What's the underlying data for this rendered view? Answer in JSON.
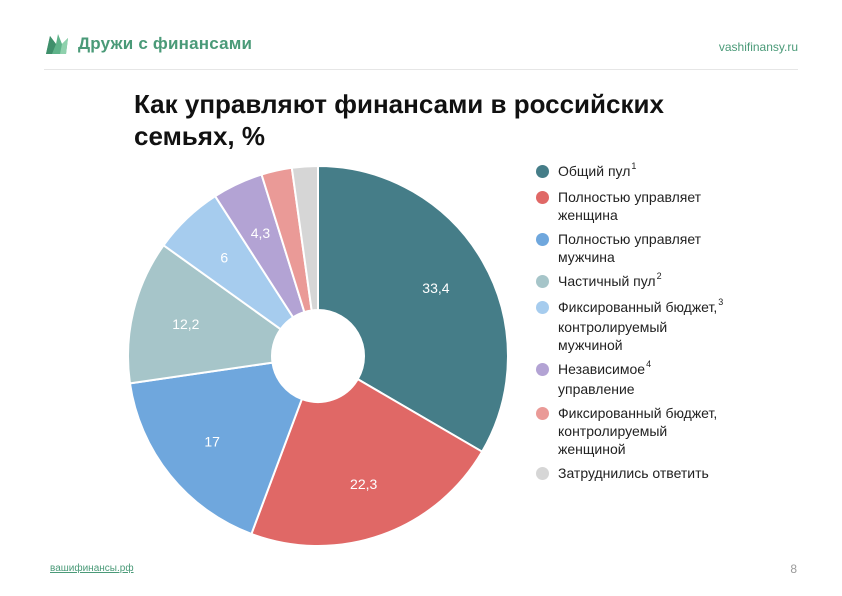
{
  "header": {
    "brand": "Дружи с финансами",
    "site": "vashifinansy.ru"
  },
  "title": "Как управляют финансами в российских семьях, %",
  "chart_data": {
    "type": "pie",
    "title": "Как управляют финансами в российских семьях, %",
    "donut": true,
    "legend_position": "right",
    "categories": [
      "Общий пул",
      "Полностью управляет женщина",
      "Полностью управляет мужчина",
      "Частичный пул",
      "Фиксированный бюджет, контролируемый мужчиной",
      "Независимое управление",
      "Фиксированный бюджет, контролируемый женщиной",
      "Затруднились ответить"
    ],
    "values": [
      33.4,
      22.3,
      17,
      12.2,
      6,
      4.3,
      2.6,
      2.2
    ],
    "value_labels": [
      "33,4",
      "22,3",
      "17",
      "12,2",
      "6",
      "4,3",
      "",
      ""
    ],
    "colors": [
      "#457d88",
      "#e06866",
      "#6fa7dd",
      "#a6c5c9",
      "#a6ccee",
      "#b3a3d4",
      "#ea9a97",
      "#d6d6d6"
    ]
  },
  "legend": [
    {
      "label": "Общий пул",
      "sup": "1",
      "color": "#457d88"
    },
    {
      "label": "Полностью управляет\nженщина",
      "sup": "",
      "color": "#e06866"
    },
    {
      "label": "Полностью управляет\nмужчина",
      "sup": "",
      "color": "#6fa7dd"
    },
    {
      "label": "Частичный пул",
      "sup": "2",
      "color": "#a6c5c9"
    },
    {
      "label": "Фиксированный бюджет,",
      "sup": "3",
      "label2": "контролируемый\nмужчиной",
      "color": "#a6ccee"
    },
    {
      "label": "Независимое",
      "sup": "4",
      "label2": "управление",
      "color": "#b3a3d4"
    },
    {
      "label": "Фиксированный бюджет,\nконтролируемый\nженщиной",
      "sup": "",
      "color": "#ea9a97"
    },
    {
      "label": "Затруднились ответить",
      "sup": "",
      "color": "#d6d6d6"
    }
  ],
  "footer": {
    "link": "вашифинансы.рф",
    "page": "8"
  }
}
